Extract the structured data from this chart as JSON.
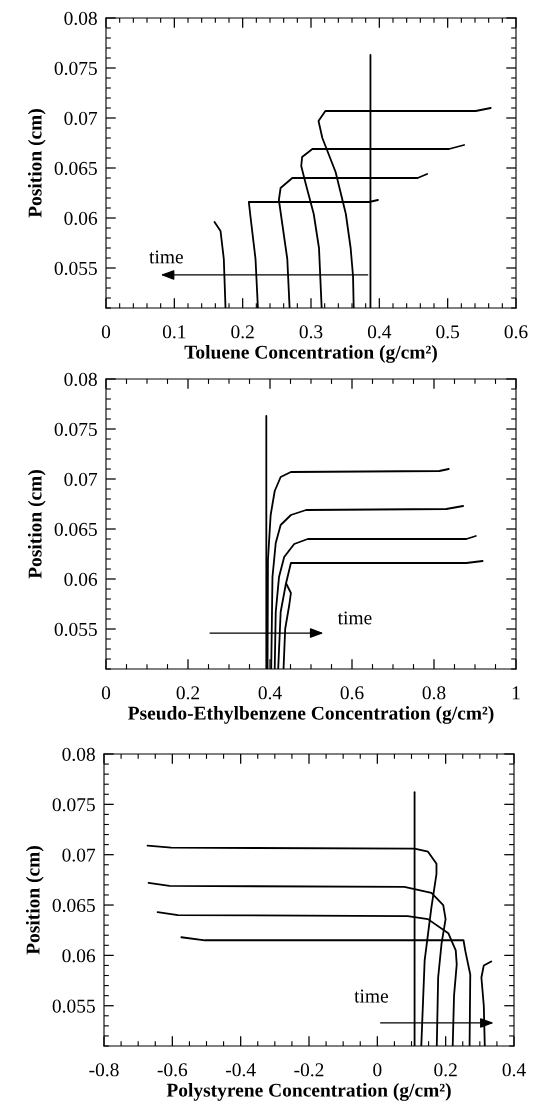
{
  "chart_data": [
    {
      "type": "line",
      "xlabel": "Toluene Concentration (g/cm²)",
      "ylabel": "Position (cm)",
      "xlim": [
        0,
        0.6
      ],
      "ylim": [
        0.051,
        0.08
      ],
      "xticks": [
        0,
        0.1,
        0.2,
        0.3,
        0.4,
        0.5,
        0.6
      ],
      "yticks": [
        0.055,
        0.06,
        0.065,
        0.07,
        0.075,
        0.08
      ],
      "series": [
        {
          "color": "#000000",
          "x": [
            0.387,
            0.387
          ],
          "values": [
            0.051,
            0.0763
          ]
        },
        {
          "color": "#000000",
          "x": [
            0.563,
            0.541,
            0.321,
            0.311,
            0.3166,
            0.336,
            0.351,
            0.358,
            0.3615,
            0.3625
          ],
          "values": [
            0.071,
            0.0707,
            0.0707,
            0.0697,
            0.068,
            0.0646,
            0.0604,
            0.057,
            0.0542,
            0.051
          ]
        },
        {
          "color": "#000000",
          "x": [
            0.524,
            0.502,
            0.302,
            0.287,
            0.2857,
            0.292,
            0.304,
            0.3117,
            0.3156
          ],
          "values": [
            0.0673,
            0.0669,
            0.0669,
            0.0661,
            0.0652,
            0.0635,
            0.0604,
            0.057,
            0.051
          ]
        },
        {
          "color": "#000000",
          "x": [
            0.47,
            0.456,
            0.2726,
            0.2555,
            0.253,
            0.258,
            0.2653,
            0.2687
          ],
          "values": [
            0.0644,
            0.064,
            0.064,
            0.063,
            0.0618,
            0.0594,
            0.0559,
            0.051
          ]
        },
        {
          "color": "#000000",
          "x": [
            0.398,
            0.385,
            0.209,
            0.2115,
            0.2188,
            0.2223
          ],
          "values": [
            0.0618,
            0.0616,
            0.0616,
            0.0601,
            0.0559,
            0.051
          ]
        },
        {
          "color": "#000000",
          "x": [
            0.1588,
            0.1676,
            0.1724,
            0.1749
          ],
          "values": [
            0.0596,
            0.0587,
            0.0559,
            0.051
          ]
        }
      ],
      "annotations": [
        "time"
      ]
    },
    {
      "type": "line",
      "xlabel": "Pseudo-Ethylbenzene Concentration (g/cm²)",
      "ylabel": "Position (cm)",
      "xlim": [
        0,
        1
      ],
      "ylim": [
        0.051,
        0.08
      ],
      "xticks": [
        0,
        0.2,
        0.4,
        0.6,
        0.8,
        1
      ],
      "yticks": [
        0.055,
        0.06,
        0.065,
        0.07,
        0.075,
        0.08
      ],
      "series": [
        {
          "color": "#000000",
          "x": [
            0.391,
            0.391
          ],
          "values": [
            0.051,
            0.0763
          ]
        },
        {
          "color": "#000000",
          "x": [
            0.836,
            0.813,
            0.451,
            0.426,
            0.4115,
            0.4016,
            0.395,
            0.394
          ],
          "values": [
            0.071,
            0.0708,
            0.0707,
            0.0702,
            0.0688,
            0.0664,
            0.0619,
            0.051
          ]
        },
        {
          "color": "#000000",
          "x": [
            0.871,
            0.83,
            0.488,
            0.451,
            0.426,
            0.414,
            0.406,
            0.403
          ],
          "values": [
            0.0673,
            0.067,
            0.0669,
            0.0664,
            0.0654,
            0.0636,
            0.0602,
            0.051
          ]
        },
        {
          "color": "#000000",
          "x": [
            0.902,
            0.879,
            0.492,
            0.459,
            0.4346,
            0.422,
            0.414,
            0.4115
          ],
          "values": [
            0.0643,
            0.064,
            0.064,
            0.0635,
            0.0622,
            0.0602,
            0.0567,
            0.051
          ]
        },
        {
          "color": "#000000",
          "x": [
            0.9185,
            0.879,
            0.451,
            0.4387,
            0.426,
            0.42
          ],
          "values": [
            0.0618,
            0.0616,
            0.0616,
            0.0595,
            0.0567,
            0.051
          ]
        },
        {
          "color": "#000000",
          "x": [
            0.44,
            0.451,
            0.447,
            0.437,
            0.433
          ],
          "values": [
            0.0595,
            0.0586,
            0.0574,
            0.055,
            0.051
          ]
        }
      ],
      "annotations": [
        "time"
      ]
    },
    {
      "type": "line",
      "xlabel": "Polystyrene Concentration (g/cm²)",
      "ylabel": "Position (cm)",
      "xlim": [
        -0.8,
        0.4
      ],
      "ylim": [
        0.051,
        0.08
      ],
      "xticks": [
        -0.8,
        -0.6,
        -0.4,
        -0.2,
        0,
        0.2,
        0.4
      ],
      "yticks": [
        0.055,
        0.06,
        0.065,
        0.07,
        0.075,
        0.08
      ],
      "series": [
        {
          "color": "#000000",
          "x": [
            0.109,
            0.109
          ],
          "values": [
            0.051,
            0.0762
          ]
        },
        {
          "color": "#000000",
          "x": [
            -0.6726,
            -0.6034,
            0.1088,
            0.1484,
            0.1731,
            0.1731,
            0.158,
            0.1385,
            0.1286
          ],
          "values": [
            0.0709,
            0.0707,
            0.0706,
            0.0703,
            0.0691,
            0.0681,
            0.0647,
            0.0595,
            0.051
          ]
        },
        {
          "color": "#000000",
          "x": [
            -0.6696,
            -0.6083,
            0.0791,
            0.1583,
            0.1929,
            0.1998,
            0.188,
            0.178,
            0.174
          ],
          "values": [
            0.0672,
            0.0669,
            0.0668,
            0.0662,
            0.065,
            0.0636,
            0.0612,
            0.0578,
            0.051
          ]
        },
        {
          "color": "#000000",
          "x": [
            -0.643,
            -0.5836,
            0.089,
            0.148,
            0.2077,
            0.2295,
            0.2324,
            0.2245,
            0.2206
          ],
          "values": [
            0.0643,
            0.064,
            0.0639,
            0.0636,
            0.0622,
            0.0605,
            0.0591,
            0.056,
            0.051
          ]
        },
        {
          "color": "#000000",
          "x": [
            -0.5737,
            -0.5045,
            0.2522,
            0.2572,
            0.272,
            0.27
          ],
          "values": [
            0.0618,
            0.0615,
            0.0615,
            0.0605,
            0.0581,
            0.051
          ]
        },
        {
          "color": "#000000",
          "x": [
            0.3333,
            0.3116,
            0.3046,
            0.3116,
            0.3145
          ],
          "values": [
            0.0594,
            0.059,
            0.0578,
            0.055,
            0.051
          ]
        }
      ],
      "annotations": [
        "time"
      ]
    }
  ]
}
